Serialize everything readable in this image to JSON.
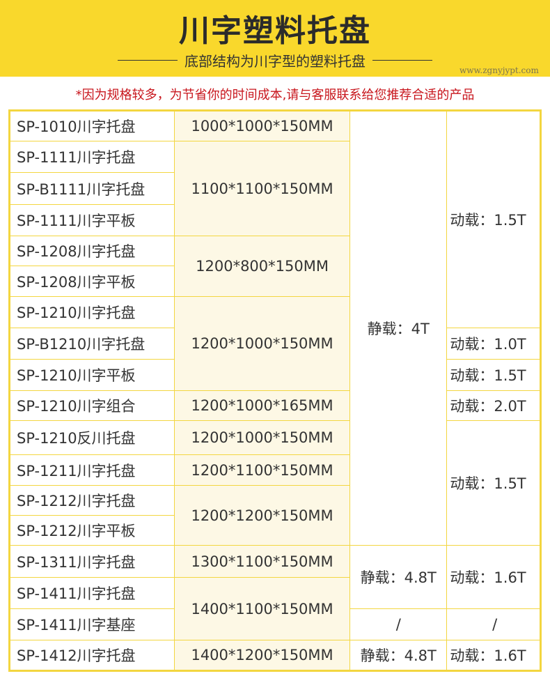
{
  "header": {
    "title": "川字塑料托盘",
    "subtitle": "底部结构为川字型的塑料托盘"
  },
  "note": "*因为规格较多，为节省你的时间成本,请与客服联系给您推荐合适的产品",
  "models": [
    "SP-1010川字托盘",
    "SP-1111川字托盘",
    "SP-B1111川字托盘",
    "SP-1111川字平板",
    "SP-1208川字托盘",
    "SP-1208川字平板",
    "SP-1210川字托盘",
    "SP-B1210川字托盘",
    "SP-1210川字平板",
    "SP-1210川字组合",
    "SP-1210反川托盘",
    "SP-1211川字托盘",
    "SP-1212川字托盘",
    "SP-1212川字平板",
    "SP-1311川字托盘",
    "SP-1411川字托盘",
    "SP-1411川字基座",
    "SP-1412川字托盘"
  ],
  "sizes": [
    "1000*1000*150MM",
    "1100*1100*150MM",
    "1200*800*150MM",
    "1200*1000*150MM",
    "1200*1000*165MM",
    "1200*1000*150MM",
    "1200*1100*150MM",
    "1200*1200*150MM",
    "1300*1100*150MM",
    "1400*1100*150MM",
    "1400*1200*150MM"
  ],
  "static": [
    "静载：4T",
    "静载：4.8T",
    "/",
    "静载：4.8T"
  ],
  "dynamic": [
    "动载：1.5T",
    "动载：1.0T",
    "动载：1.5T",
    "动载：2.0T",
    "动载：1.5T",
    "动载：1.6T",
    "/",
    "动载：1.6T"
  ],
  "watermark": "www.zgnyjypt.com",
  "colors": {
    "header": "#f9d82c",
    "border": "#f3d640",
    "note": "#c8161d"
  }
}
